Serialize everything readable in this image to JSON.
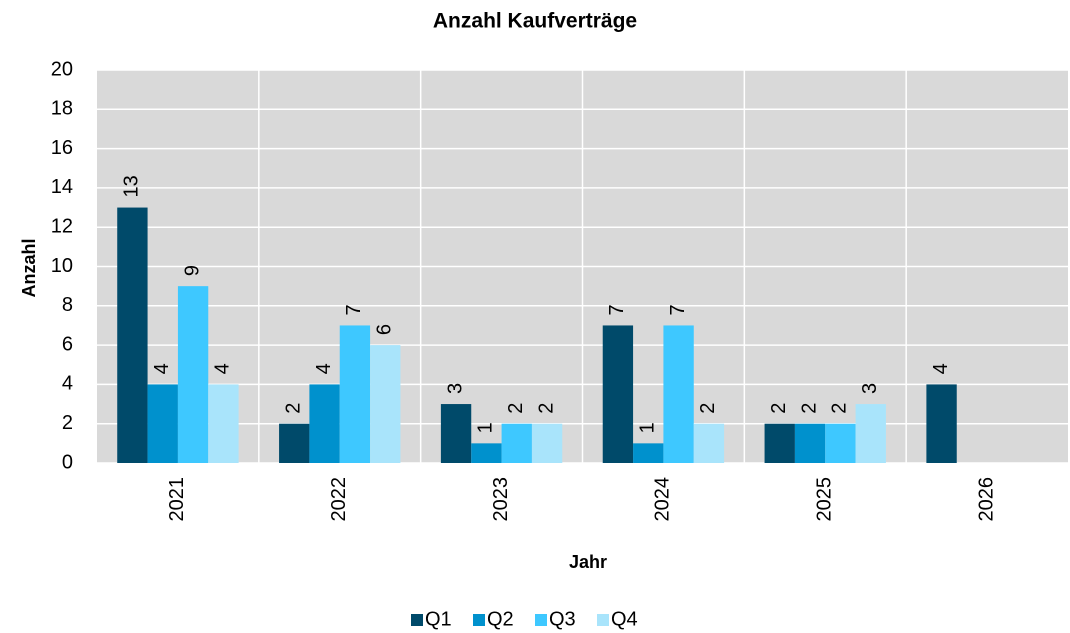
{
  "chart_data": {
    "type": "bar",
    "title": "Anzahl Kaufverträge",
    "x_label": "Jahr",
    "y_label": "Anzahl",
    "categories": [
      "2021",
      "2022",
      "2023",
      "2024",
      "2025",
      "2026"
    ],
    "series": [
      {
        "name": "Q1",
        "color": "#004a6a",
        "values": [
          13,
          2,
          3,
          7,
          2,
          4
        ]
      },
      {
        "name": "Q2",
        "color": "#0091cd",
        "values": [
          4,
          4,
          1,
          1,
          2,
          null
        ]
      },
      {
        "name": "Q3",
        "color": "#3ec8ff",
        "values": [
          9,
          7,
          2,
          7,
          2,
          null
        ]
      },
      {
        "name": "Q4",
        "color": "#a9e4fb",
        "values": [
          4,
          6,
          2,
          2,
          3,
          null
        ]
      }
    ],
    "ylim": [
      0,
      20
    ],
    "yticks": [
      0,
      2,
      4,
      6,
      8,
      10,
      12,
      14,
      16,
      18,
      20
    ],
    "grid": true,
    "legend": "bottom"
  }
}
